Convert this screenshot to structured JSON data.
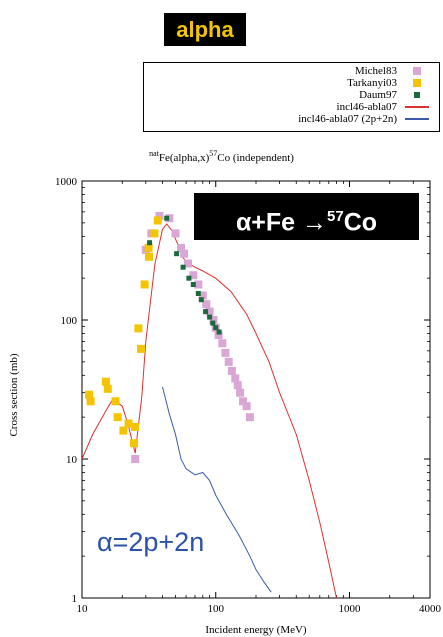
{
  "badge": {
    "text": "alpha",
    "bg": "#000000",
    "color": "#f5c400"
  },
  "legend": {
    "items": [
      {
        "label": "Michel83",
        "marker": "square",
        "color": "#d9a6d6"
      },
      {
        "label": "Tarkanyi03",
        "marker": "square",
        "color": "#f5c400"
      },
      {
        "label": "Daum97",
        "marker": "square",
        "color": "#1a6b3c"
      },
      {
        "label": "incl46-abla07",
        "marker": "line",
        "color": "#e03030"
      },
      {
        "label": "incl46-abla07 (2p+2n)",
        "marker": "line",
        "color": "#3a5ca8"
      }
    ]
  },
  "title": {
    "prefix": "nat",
    "main": "Fe(alpha,x)",
    "sup": "57",
    "suffix": "Co (independent)"
  },
  "reaction_box": {
    "text": "α+Fe →",
    "mass": "57",
    "element": "Co"
  },
  "annotation": "α=2p+2n",
  "chart_data": {
    "type": "scatter",
    "xlabel": "Incident energy (MeV)",
    "ylabel": "Cross section (mb)",
    "xscale": "log",
    "yscale": "log",
    "xlim": [
      10,
      4000
    ],
    "ylim": [
      1,
      1000
    ],
    "xticks": [
      {
        "value": 10,
        "label": "10"
      },
      {
        "value": 100,
        "label": "100"
      },
      {
        "value": 1000,
        "label": "1000"
      },
      {
        "value": 4000,
        "label": "4000"
      }
    ],
    "yticks": [
      {
        "value": 1,
        "label": "1"
      },
      {
        "value": 10,
        "label": "10"
      },
      {
        "value": 100,
        "label": "100"
      },
      {
        "value": 1000,
        "label": "1000"
      }
    ],
    "series": [
      {
        "name": "Michel83",
        "kind": "points",
        "color": "#d9a6d6",
        "points": [
          [
            25,
            10
          ],
          [
            30,
            320
          ],
          [
            33,
            420
          ],
          [
            38,
            560
          ],
          [
            45,
            540
          ],
          [
            50,
            420
          ],
          [
            55,
            330
          ],
          [
            58,
            300
          ],
          [
            62,
            255
          ],
          [
            68,
            210
          ],
          [
            74,
            180
          ],
          [
            80,
            150
          ],
          [
            85,
            130
          ],
          [
            90,
            115
          ],
          [
            96,
            100
          ],
          [
            100,
            88
          ],
          [
            105,
            78
          ],
          [
            112,
            68
          ],
          [
            118,
            58
          ],
          [
            125,
            50
          ],
          [
            132,
            43
          ],
          [
            140,
            38
          ],
          [
            146,
            34
          ],
          [
            152,
            30
          ],
          [
            160,
            26
          ],
          [
            170,
            24
          ],
          [
            180,
            20
          ]
        ]
      },
      {
        "name": "Tarkanyi03",
        "kind": "points",
        "color": "#f5c400",
        "points": [
          [
            11.3,
            29
          ],
          [
            11.6,
            26
          ],
          [
            15.1,
            36
          ],
          [
            15.6,
            32
          ],
          [
            17.8,
            26
          ],
          [
            18.5,
            20
          ],
          [
            20.4,
            16
          ],
          [
            22.3,
            18
          ],
          [
            24.5,
            13
          ],
          [
            24.9,
            17
          ],
          [
            26.4,
            87
          ],
          [
            27.6,
            62
          ],
          [
            29.4,
            180
          ],
          [
            31.5,
            330
          ],
          [
            31.7,
            285
          ],
          [
            34.8,
            420
          ],
          [
            36.9,
            520
          ]
        ]
      },
      {
        "name": "Daum97",
        "kind": "points",
        "color": "#1a6b3c",
        "points": [
          [
            32,
            360
          ],
          [
            43,
            540
          ],
          [
            51,
            300
          ],
          [
            57,
            240
          ],
          [
            63,
            200
          ],
          [
            68,
            180
          ],
          [
            74,
            155
          ],
          [
            78,
            140
          ],
          [
            84,
            115
          ],
          [
            90,
            105
          ],
          [
            95,
            95
          ],
          [
            100,
            88
          ],
          [
            106,
            82
          ]
        ]
      },
      {
        "name": "incl46-abla07",
        "kind": "line",
        "color": "#e03030",
        "points": [
          [
            10,
            10
          ],
          [
            12,
            15
          ],
          [
            15,
            22
          ],
          [
            17,
            27
          ],
          [
            20,
            24
          ],
          [
            22,
            18
          ],
          [
            25,
            11
          ],
          [
            28,
            28
          ],
          [
            30,
            70
          ],
          [
            35,
            250
          ],
          [
            40,
            450
          ],
          [
            43,
            490
          ],
          [
            47,
            440
          ],
          [
            52,
            350
          ],
          [
            57,
            280
          ],
          [
            62,
            255
          ],
          [
            70,
            240
          ],
          [
            80,
            225
          ],
          [
            100,
            200
          ],
          [
            130,
            160
          ],
          [
            170,
            110
          ],
          [
            200,
            80
          ],
          [
            250,
            50
          ],
          [
            300,
            30
          ],
          [
            400,
            15
          ],
          [
            500,
            7
          ],
          [
            600,
            3.5
          ],
          [
            700,
            1.8
          ],
          [
            800,
            1
          ]
        ]
      },
      {
        "name": "incl46-abla07 (2p+2n)",
        "kind": "line",
        "color": "#3a5ca8",
        "points": [
          [
            40,
            33
          ],
          [
            45,
            21
          ],
          [
            50,
            15
          ],
          [
            55,
            10
          ],
          [
            60,
            8.5
          ],
          [
            70,
            7.7
          ],
          [
            80,
            8
          ],
          [
            90,
            7
          ],
          [
            100,
            5.5
          ],
          [
            120,
            4
          ],
          [
            150,
            2.8
          ],
          [
            180,
            2
          ],
          [
            200,
            1.6
          ],
          [
            230,
            1.3
          ],
          [
            260,
            1.1
          ]
        ]
      }
    ]
  }
}
